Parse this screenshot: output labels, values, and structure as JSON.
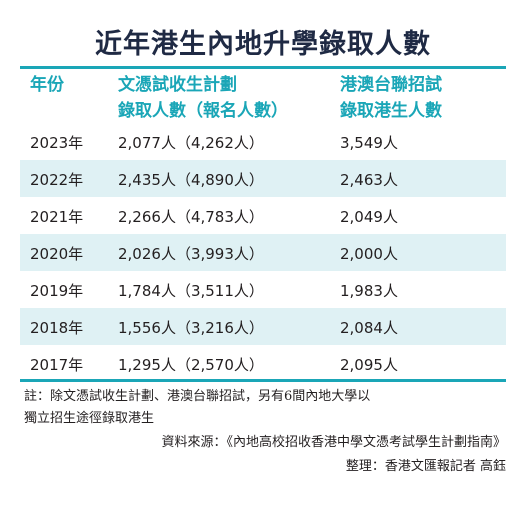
{
  "title": "近年港生內地升學錄取人數",
  "headers": {
    "year": "年份",
    "admission_line1": "文憑試收生計劃",
    "admission_line2": "錄取人數（報名人數）",
    "joint_line1": "港澳台聯招試",
    "joint_line2": "錄取港生人數"
  },
  "rows": [
    {
      "year": "2023年",
      "admission": "2,077人（4,262人）",
      "joint": "3,549人"
    },
    {
      "year": "2022年",
      "admission": "2,435人（4,890人）",
      "joint": "2,463人"
    },
    {
      "year": "2021年",
      "admission": "2,266人（4,783人）",
      "joint": "2,049人"
    },
    {
      "year": "2020年",
      "admission": "2,026人（3,993人）",
      "joint": "2,000人"
    },
    {
      "year": "2019年",
      "admission": "1,784人（3,511人）",
      "joint": "1,983人"
    },
    {
      "year": "2018年",
      "admission": "1,556人（3,216人）",
      "joint": "2,084人"
    },
    {
      "year": "2017年",
      "admission": "1,295人（2,570人）",
      "joint": "2,095人"
    }
  ],
  "note_line1": "註：除文憑試收生計劃、港澳台聯招試，另有6間內地大學以",
  "note_line2": "獨立招生途徑錄取港生",
  "source": "資料來源：《內地高校招收香港中學文憑考試學生計劃指南》",
  "editor": "整理：香港文匯報記者 高鈺",
  "colors": {
    "accent": "#1aa6b7",
    "shade": "#dff1f4",
    "title": "#1f2a44"
  }
}
